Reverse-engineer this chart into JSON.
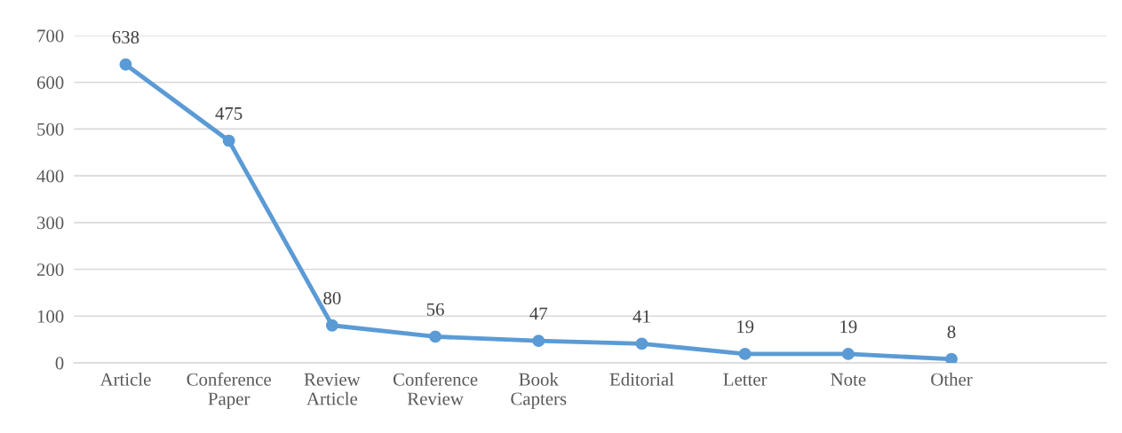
{
  "chart_data": {
    "type": "line",
    "categories": [
      "Article",
      "Conference\nPaper",
      "Review\nArticle",
      "Conference\nReview",
      "Book\nCapters",
      "Editorial",
      "Letter",
      "Note",
      "Other",
      null
    ],
    "series": [
      {
        "color": "#5b9bd5",
        "values": [
          638,
          475,
          80,
          56,
          47,
          41,
          19,
          19,
          8,
          null
        ]
      }
    ],
    "ylim": [
      0,
      700
    ],
    "yticks": [
      0,
      100,
      200,
      300,
      400,
      500,
      600,
      700
    ],
    "grid": "y",
    "marker": "circle",
    "line_style": "solid",
    "data_labels": true,
    "legend": false
  }
}
